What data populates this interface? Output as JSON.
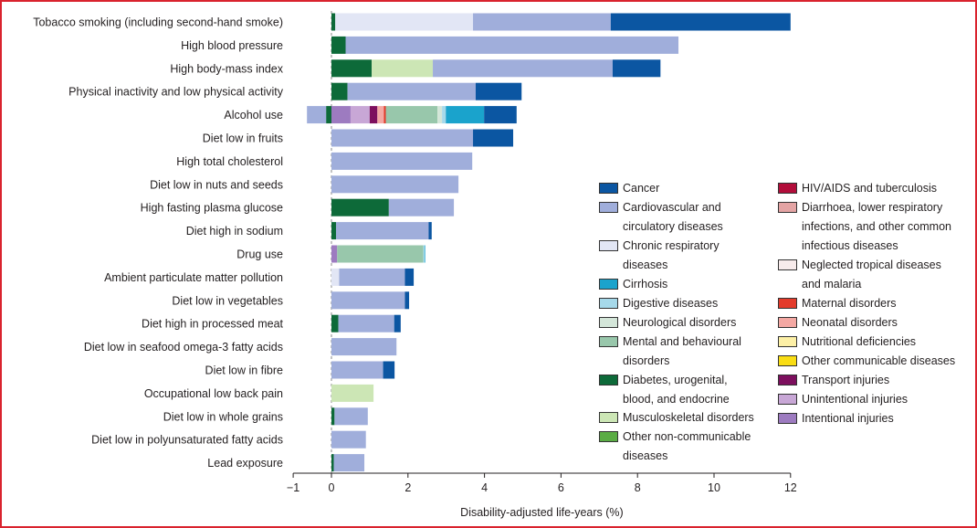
{
  "chart_data": {
    "type": "bar",
    "stacked": true,
    "orientation": "horizontal",
    "xlabel": "Disability-adjusted life-years (%)",
    "xlim": [
      -1,
      12
    ],
    "xticks": [
      -1,
      0,
      2,
      4,
      6,
      8,
      10,
      12
    ],
    "categories": [
      "Tobacco smoking (including second-hand smoke)",
      "High blood pressure",
      "High body-mass index",
      "Physical inactivity and low physical activity",
      "Alcohol use",
      "Diet low in fruits",
      "High total cholesterol",
      "Diet low in nuts and seeds",
      "High fasting plasma glucose",
      "Diet high in sodium",
      "Drug use",
      "Ambient particulate matter pollution",
      "Diet low in vegetables",
      "Diet high in processed meat",
      "Diet low in seafood omega-3 fatty acids",
      "Diet low in fibre",
      "Occupational low back pain",
      "Diet low in whole grains",
      "Diet low in polyunsaturated fatty acids",
      "Lead exposure"
    ],
    "series": [
      {
        "name": "Diabetes, urogenital, blood, and endocrine",
        "color": "#0d6a39",
        "values": [
          0.1,
          0.37,
          1.05,
          0.42,
          -0.14,
          0,
          0,
          0,
          1.5,
          0.12,
          0,
          0,
          0,
          0.18,
          0,
          0,
          0,
          0.08,
          0,
          0.06
        ]
      },
      {
        "name": "Musculoskeletal disorders",
        "color": "#cce6b5",
        "values": [
          0,
          0,
          1.6,
          0,
          0,
          0,
          0,
          0,
          0,
          0,
          0,
          0,
          0,
          0,
          0,
          0,
          1.1,
          0,
          0,
          0
        ]
      },
      {
        "name": "Intentional injuries",
        "color": "#9d7bc0",
        "values": [
          0,
          0,
          0,
          0,
          0.5,
          0,
          0,
          0,
          0,
          0,
          0.15,
          0,
          0,
          0,
          0,
          0,
          0,
          0,
          0,
          0
        ]
      },
      {
        "name": "Unintentional injuries",
        "color": "#c8a7d6",
        "values": [
          0,
          0,
          0,
          0,
          0.5,
          0,
          0,
          0,
          0,
          0,
          0,
          0,
          0,
          0,
          0,
          0,
          0,
          0,
          0,
          0
        ]
      },
      {
        "name": "Transport injuries",
        "color": "#7d0f5e",
        "values": [
          0,
          0,
          0,
          0,
          0.2,
          0,
          0,
          0,
          0,
          0,
          0,
          0,
          0,
          0,
          0,
          0,
          0,
          0,
          0,
          0
        ]
      },
      {
        "name": "Neonatal disorders",
        "color": "#f4a8a3",
        "values": [
          0,
          0,
          0,
          0,
          0.17,
          0,
          0,
          0,
          0,
          0,
          0,
          0,
          0,
          0,
          0,
          0,
          0,
          0,
          0,
          0
        ]
      },
      {
        "name": "Maternal disorders",
        "color": "#e33b2b",
        "values": [
          0,
          0,
          0,
          0,
          0.05,
          0,
          0,
          0,
          0,
          0,
          0,
          0,
          0,
          0,
          0,
          0,
          0,
          0,
          0,
          0
        ]
      },
      {
        "name": "Mental and behavioural disorders",
        "color": "#98c7ab",
        "values": [
          0,
          0,
          0,
          0,
          1.35,
          0,
          0,
          0,
          0,
          0,
          2.25,
          0,
          0,
          0,
          0,
          0,
          0,
          0,
          0,
          0
        ]
      },
      {
        "name": "Neurological disorders",
        "color": "#d4e6d9",
        "values": [
          0,
          0,
          0,
          0,
          0.12,
          0,
          0,
          0,
          0,
          0,
          0,
          0,
          0,
          0,
          0,
          0,
          0,
          0,
          0,
          0
        ]
      },
      {
        "name": "Digestive diseases",
        "color": "#a6d9ea",
        "values": [
          0,
          0,
          0,
          0,
          0.1,
          0,
          0,
          0,
          0,
          0,
          0.03,
          0,
          0,
          0,
          0,
          0,
          0,
          0,
          0,
          0
        ]
      },
      {
        "name": "Cirrhosis",
        "color": "#1aa3cc",
        "values": [
          0,
          0,
          0,
          0,
          1.0,
          0,
          0,
          0,
          0,
          0,
          0.02,
          0,
          0,
          0,
          0,
          0,
          0,
          0,
          0,
          0
        ]
      },
      {
        "name": "Chronic respiratory diseases",
        "color": "#e2e6f5",
        "values": [
          3.6,
          0,
          0,
          0,
          0,
          0,
          0,
          0,
          0,
          0,
          0,
          0.2,
          0,
          0,
          0,
          0,
          0,
          0,
          0,
          0
        ]
      },
      {
        "name": "Cardiovascular and circulatory diseases",
        "color": "#a0aedb",
        "values": [
          3.6,
          8.7,
          4.7,
          3.35,
          -0.5,
          3.7,
          3.68,
          3.32,
          1.7,
          2.42,
          0,
          1.72,
          1.92,
          1.46,
          1.7,
          1.35,
          0,
          0.87,
          0.9,
          0.8
        ]
      },
      {
        "name": "Cancer",
        "color": "#0b56a2",
        "values": [
          4.7,
          0,
          1.25,
          1.2,
          0.85,
          1.05,
          0,
          0,
          0,
          0.08,
          0,
          0.23,
          0.11,
          0.17,
          0,
          0.3,
          0,
          0,
          0,
          0
        ]
      }
    ]
  },
  "legend": {
    "col1": [
      {
        "label": "Cancer",
        "color": "#0b56a2"
      },
      {
        "label": "Cardiovascular and circulatory diseases",
        "color": "#a0aedb"
      },
      {
        "label": "Chronic respiratory diseases",
        "color": "#e2e6f5"
      },
      {
        "label": "Cirrhosis",
        "color": "#1aa3cc"
      },
      {
        "label": "Digestive diseases",
        "color": "#a6d9ea"
      },
      {
        "label": "Neurological disorders",
        "color": "#d4e6d9"
      },
      {
        "label": "Mental and behavioural disorders",
        "color": "#98c7ab"
      },
      {
        "label": "Diabetes, urogenital, blood, and endocrine",
        "color": "#0d6a39"
      },
      {
        "label": "Musculoskeletal disorders",
        "color": "#cce6b5"
      },
      {
        "label": "Other non-communicable diseases",
        "color": "#5aac44"
      }
    ],
    "col2": [
      {
        "label": "HIV/AIDS and tuberculosis",
        "color": "#b20d3a"
      },
      {
        "label": "Diarrhoea, lower respiratory infections, and other common infectious diseases",
        "color": "#e4a4a4"
      },
      {
        "label": "Neglected tropical diseases and malaria",
        "color": "#f7ebeb"
      },
      {
        "label": "Maternal disorders",
        "color": "#e33b2b"
      },
      {
        "label": "Neonatal disorders",
        "color": "#f4a8a3"
      },
      {
        "label": "Nutritional deficiencies",
        "color": "#fdf0a6"
      },
      {
        "label": "Other communicable diseases",
        "color": "#f9dd14"
      },
      {
        "label": "Transport injuries",
        "color": "#7d0f5e"
      },
      {
        "label": "Unintentional injuries",
        "color": "#c8a7d6"
      },
      {
        "label": "Intentional injuries",
        "color": "#9d7bc0"
      }
    ]
  }
}
